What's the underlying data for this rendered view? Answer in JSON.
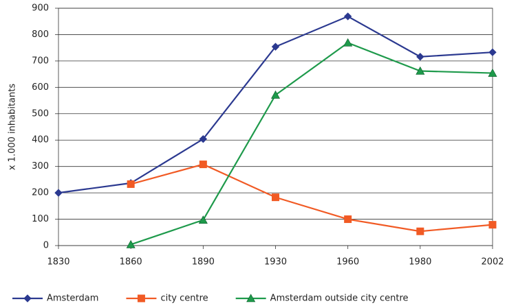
{
  "chart_data": {
    "type": "line",
    "y_label": "x 1.000 inhabitants",
    "categories": [
      "1830",
      "1860",
      "1890",
      "1930",
      "1960",
      "1980",
      "2002"
    ],
    "series": [
      {
        "name": "Amsterdam",
        "color": "#2b3990",
        "marker": "diamond",
        "values": [
          200,
          237,
          404,
          754,
          869,
          716,
          733
        ]
      },
      {
        "name": "city centre",
        "color": "#f15a24",
        "marker": "square",
        "values": [
          null,
          233,
          308,
          183,
          100,
          54,
          79
        ]
      },
      {
        "name": "Amsterdam outside city centre",
        "color": "#1e9a4b",
        "marker": "triangle",
        "values": [
          null,
          4,
          97,
          571,
          769,
          662,
          654
        ]
      }
    ],
    "ylim": [
      0,
      900
    ],
    "yticks": [
      0,
      100,
      200,
      300,
      400,
      500,
      600,
      700,
      800,
      900
    ],
    "grid": true
  }
}
